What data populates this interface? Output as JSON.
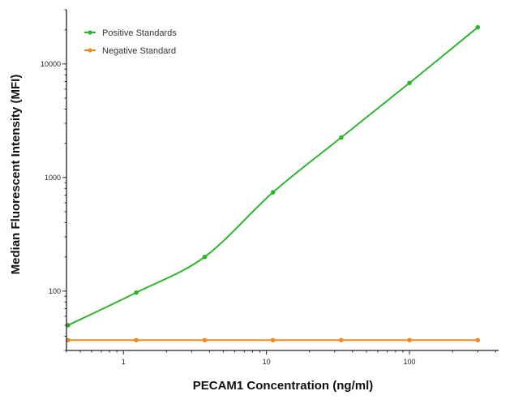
{
  "chart_data": {
    "type": "line",
    "xlabel": "PECAM1 Concentration (ng/ml)",
    "ylabel": "Median  Fluorescent Intensity  (MFI)",
    "x_scale": "log",
    "y_scale": "log",
    "xlim": [
      0.4,
      420
    ],
    "ylim": [
      30,
      30000
    ],
    "x_ticks": [
      1,
      10,
      100
    ],
    "x_tick_labels": [
      "1",
      "10",
      "100"
    ],
    "y_ticks": [
      100,
      1000,
      10000
    ],
    "y_tick_labels": [
      "100",
      "1000",
      "10000"
    ],
    "legend_position": "top-left",
    "grid": false,
    "series": [
      {
        "name": "Positive Standards",
        "color": "#2db52d",
        "marker": "circle",
        "x": [
          0.41,
          1.23,
          3.7,
          11.1,
          33.3,
          100,
          300
        ],
        "y": [
          50,
          97,
          200,
          740,
          2250,
          6800,
          21000
        ],
        "fit": true
      },
      {
        "name": "Negative Standard",
        "color": "#f08a1e",
        "marker": "circle",
        "x": [
          0.41,
          1.23,
          3.7,
          11.1,
          33.3,
          100,
          300
        ],
        "y": [
          37,
          37,
          37,
          37,
          37,
          37,
          37
        ],
        "fit": false
      }
    ]
  }
}
